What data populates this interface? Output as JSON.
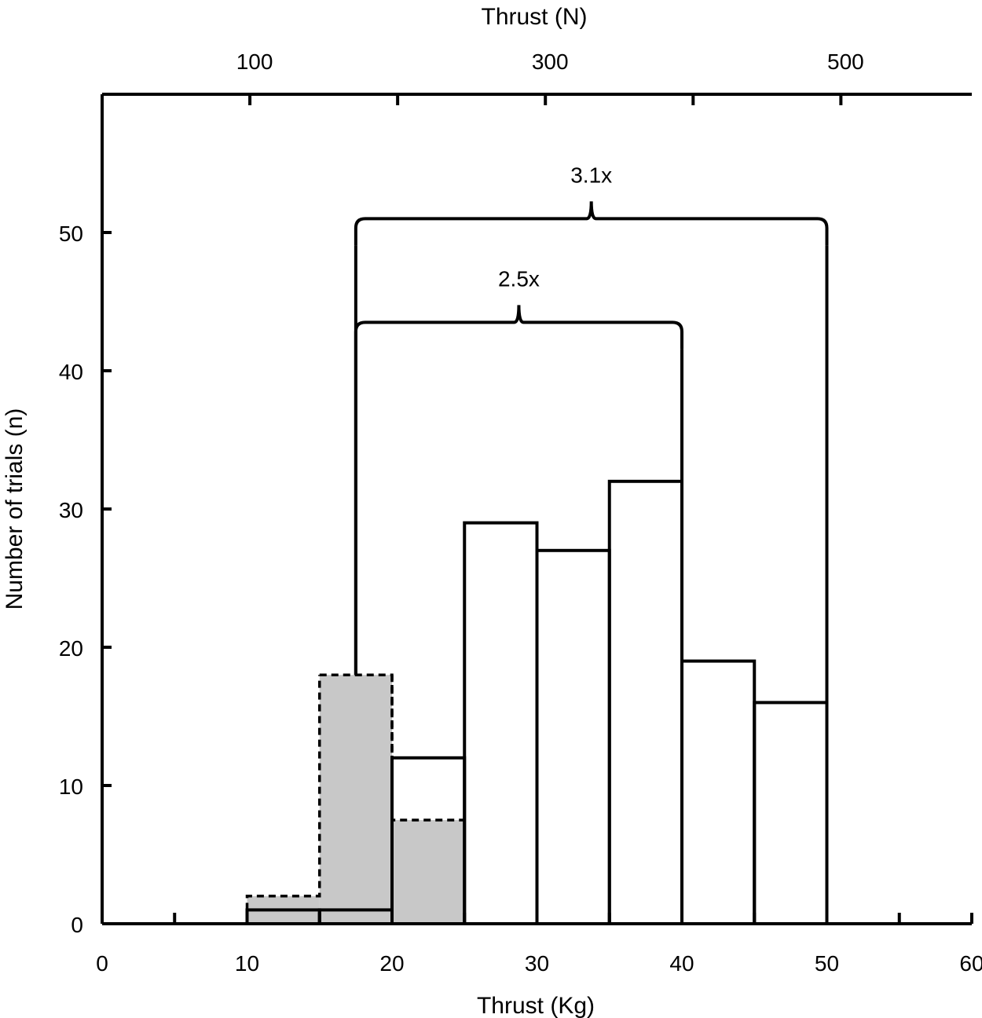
{
  "chart_data": {
    "type": "bar",
    "xlabel": "Thrust (Kg)",
    "ylabel": "Number of trials (n)",
    "top_xlabel": "Thrust (N)",
    "xlim": [
      0,
      60
    ],
    "ylim": [
      0,
      60
    ],
    "x_ticks": [
      0,
      10,
      20,
      30,
      40,
      50,
      60
    ],
    "x_minor_ticks": [
      5,
      15,
      25,
      35,
      45,
      55
    ],
    "y_ticks": [
      0,
      10,
      20,
      30,
      40,
      50
    ],
    "top_ticks": [
      100,
      200,
      300,
      400,
      500
    ],
    "top_tick_labels": [
      {
        "value": 100,
        "label": "100"
      },
      {
        "value": 300,
        "label": "300"
      },
      {
        "value": 500,
        "label": "500"
      }
    ],
    "newtons_per_kg": 9.81,
    "bin_edges": [
      10,
      15,
      20,
      25,
      30,
      35,
      40,
      45,
      50
    ],
    "series": [
      {
        "style": "solid outline, white fill",
        "values": [
          1,
          1,
          12,
          29,
          27,
          32,
          19,
          16
        ]
      },
      {
        "style": "dashed outline, gray fill",
        "values": [
          2,
          18,
          7.5,
          0,
          0,
          0,
          0,
          0
        ]
      }
    ],
    "annotations": [
      {
        "label": "2.5x",
        "x_start": 17.5,
        "x_end": 40,
        "y": 43.5
      },
      {
        "label": "3.1x",
        "x_start": 17.5,
        "x_end": 50,
        "y": 51
      }
    ],
    "colors": {
      "gray_fill": "#c8c8c8",
      "outline": "#000000",
      "background": "#ffffff"
    },
    "grid": false
  }
}
